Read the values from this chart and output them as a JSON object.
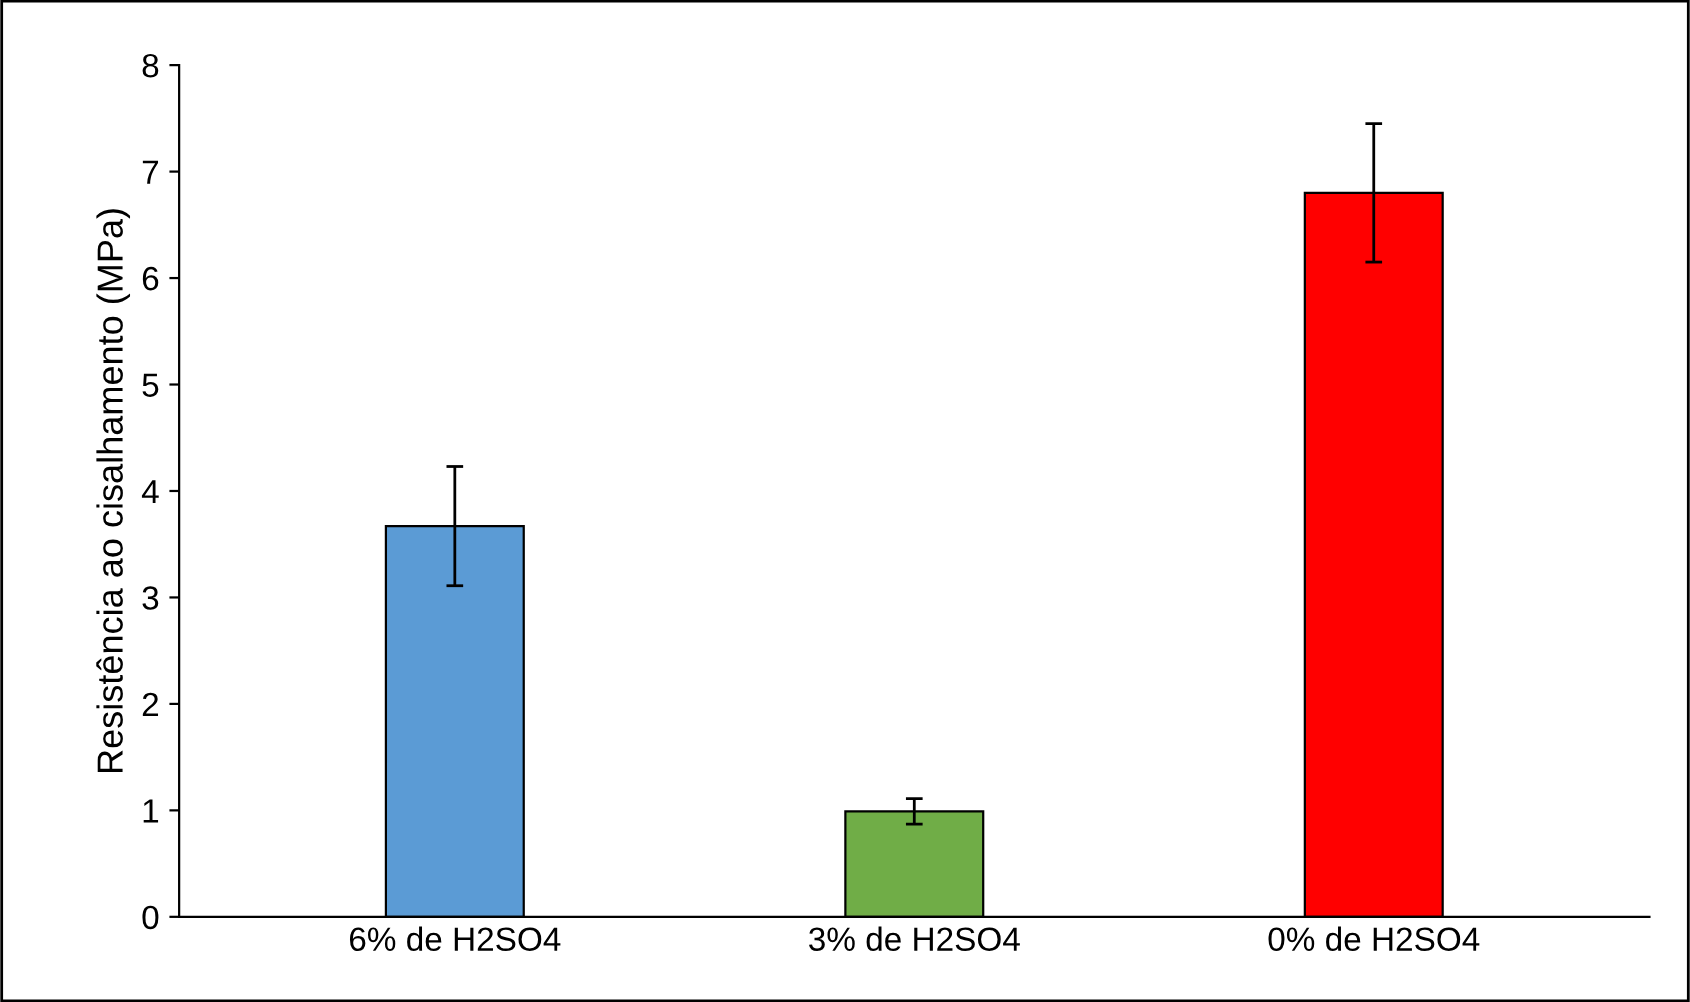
{
  "chart_data": {
    "type": "bar",
    "ylabel": "Resistência ao cisalhamento (MPa)",
    "categories": [
      "6% de H2SO4",
      "3% de H2SO4",
      "0% de H2SO4"
    ],
    "values": [
      3.67,
      0.99,
      6.8
    ],
    "colors": [
      "#5b9bd5",
      "#70ad47",
      "#ff0000"
    ],
    "errors": [
      0.56,
      0.12,
      0.65
    ],
    "ylim": [
      0,
      8
    ],
    "yticks": [
      0,
      1,
      2,
      3,
      4,
      5,
      6,
      7,
      8
    ],
    "grid": false
  }
}
